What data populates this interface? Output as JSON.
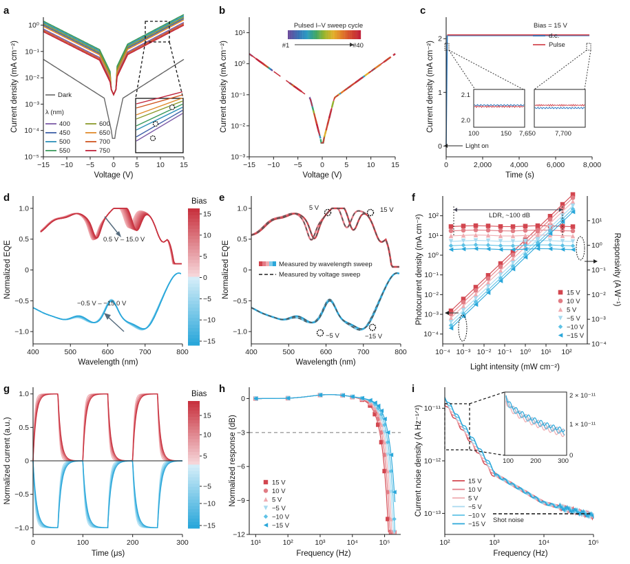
{
  "colors": {
    "red": "#d2464f",
    "blue": "#2aa7da",
    "dark": "#666666",
    "darkRed": "#c8323f",
    "dashGrey": "#555555"
  },
  "chart_data": [
    {
      "panel": "a",
      "type": "line",
      "xlabel": "Voltage (V)",
      "ylabel": "Current density (mA cm⁻²)",
      "xlim": [
        -15,
        15
      ],
      "ylim_log10": [
        -5,
        0.3
      ],
      "xticks": [
        "−15",
        "−10",
        "−5",
        "0",
        "5",
        "10",
        "15"
      ],
      "yticks": [
        "10⁻⁵",
        "10⁻⁴",
        "10⁻³",
        "10⁻²",
        "10⁻¹",
        "10⁰"
      ],
      "dark_label": "Dark",
      "legend_title": "λ (nm)",
      "series": [
        {
          "name": "400",
          "color": "#7b5aa6",
          "peak_log10": 0.1
        },
        {
          "name": "450",
          "color": "#3d5fa8",
          "peak_log10": 0.25
        },
        {
          "name": "500",
          "color": "#2a8fb8",
          "peak_log10": 0.35
        },
        {
          "name": "550",
          "color": "#3a9a5c",
          "peak_log10": 0.4
        },
        {
          "name": "600",
          "color": "#8a9a2a",
          "peak_log10": 0.3
        },
        {
          "name": "650",
          "color": "#e08a2a",
          "peak_log10": 0.2
        },
        {
          "name": "700",
          "color": "#d0551f",
          "peak_log10": 0.05
        },
        {
          "name": "750",
          "color": "#c0223a",
          "peak_log10": 0.0
        },
        {
          "name": "Dark",
          "color": "#666666",
          "peak_log10": -1.4
        }
      ]
    },
    {
      "panel": "b",
      "type": "line",
      "xlabel": "Voltage (V)",
      "ylabel": "Current density (mA cm⁻²)",
      "xlim": [
        -15,
        15
      ],
      "ylim_log10": [
        -3,
        1.5
      ],
      "xticks": [
        "−15",
        "−10",
        "−5",
        "0",
        "5",
        "10",
        "15"
      ],
      "yticks": [
        "10⁻³",
        "10⁻²",
        "10⁻¹",
        "10⁰",
        "10¹"
      ],
      "legend_title": "Pulsed I–V sweep cycle",
      "legend_start": "#1",
      "legend_end": "#40",
      "cycles": 40
    },
    {
      "panel": "c",
      "type": "line",
      "xlabel": "Time (s)",
      "ylabel": "Current density (mA cm⁻²)",
      "xlim": [
        0,
        8000
      ],
      "ylim": [
        -0.2,
        2.4
      ],
      "xticks": [
        "0",
        "2,000",
        "4,000",
        "6,000",
        "8,000"
      ],
      "yticks": [
        "0",
        "1",
        "2"
      ],
      "legend_title": "Bias = 15 V",
      "series": [
        {
          "name": "d.c.",
          "value": 2.06
        },
        {
          "name": "Pulse",
          "value": 2.07
        }
      ],
      "annotation": "Light on",
      "inset1_xticks": [
        "100",
        "150",
        "7,650"
      ],
      "inset2_xticks": [
        "7,700"
      ],
      "inset_yticks": [
        "2.1",
        "2.0"
      ]
    },
    {
      "panel": "d",
      "type": "line",
      "xlabel": "Wavelength (nm)",
      "ylabel": "Normalized EQE",
      "xlim": [
        400,
        800
      ],
      "ylim": [
        -1.2,
        1.2
      ],
      "xticks": [
        "400",
        "500",
        "600",
        "700",
        "800"
      ],
      "yticks": [
        "−1.0",
        "−0.5",
        "0",
        "0.5",
        "1.0"
      ],
      "annotations": [
        "0.5 V – 15.0 V",
        "−0.5 V – −15.0 V"
      ],
      "colorbar_label": "Bias",
      "colorbar_ticks": [
        "15",
        "10",
        "5",
        "0",
        "−5",
        "−10",
        "−15"
      ]
    },
    {
      "panel": "e",
      "type": "line",
      "xlabel": "Wavelength (nm)",
      "ylabel": "Normalized EQE",
      "xlim": [
        400,
        800
      ],
      "ylim": [
        -1.2,
        1.2
      ],
      "xticks": [
        "400",
        "500",
        "600",
        "700",
        "800"
      ],
      "yticks": [
        "−1.0",
        "−0.5",
        "0",
        "0.5",
        "1.0"
      ],
      "legend": [
        "Measured by wavelength sweep",
        "Measured by voltage sweep"
      ],
      "annotations": [
        "5 V",
        "15 V",
        "−5 V",
        "−15 V"
      ]
    },
    {
      "panel": "f",
      "type": "scatter",
      "xlabel": "Light intensity (mW cm⁻²)",
      "ylabel": "Photocurrent density (mA cm⁻²)",
      "y2label": "Responsivity (A W⁻¹)",
      "xlim_log10": [
        -4,
        3
      ],
      "ylim_log10": [
        -4.5,
        3
      ],
      "y2lim_log10": [
        -4,
        2
      ],
      "xticks": [
        "10⁻⁴",
        "10⁻³",
        "10⁻²",
        "10⁻¹",
        "10⁰",
        "10¹",
        "10²"
      ],
      "yticks": [
        "10⁻⁴",
        "10⁻³",
        "10⁻²",
        "10⁻¹",
        "10⁰",
        "10¹",
        "10²"
      ],
      "y2ticks": [
        "10⁻⁴",
        "10⁻³",
        "10⁻²",
        "10⁻¹",
        "10⁰",
        "10¹"
      ],
      "ldr": "LDR, ~100 dB",
      "series": [
        {
          "name": "15 V",
          "color": "#d2464f",
          "resp": 6
        },
        {
          "name": "10 V",
          "color": "#e17c84",
          "resp": 4
        },
        {
          "name": "5 V",
          "color": "#efabb0",
          "resp": 2.5
        },
        {
          "name": "−5 V",
          "color": "#a7d9ef",
          "resp": 1.5
        },
        {
          "name": "−10 V",
          "color": "#5ec2e6",
          "resp": 1.0
        },
        {
          "name": "−15 V",
          "color": "#2aa7da",
          "resp": 0.7
        }
      ]
    },
    {
      "panel": "g",
      "type": "line",
      "xlabel": "Time (μs)",
      "ylabel": "Normalized current (a.u.)",
      "xlim": [
        0,
        300
      ],
      "ylim": [
        -1.1,
        1.1
      ],
      "xticks": [
        "0",
        "100",
        "200",
        "300"
      ],
      "yticks": [
        "−1.0",
        "−0.5",
        "0",
        "0.5",
        "1.0"
      ],
      "colorbar_label": "Bias",
      "colorbar_ticks": [
        "15",
        "10",
        "5",
        "−5",
        "−10",
        "−15"
      ]
    },
    {
      "panel": "h",
      "type": "line",
      "xlabel": "Frequency (Hz)",
      "ylabel": "Normalized response (dB)",
      "xlim_log10": [
        0.8,
        5.5
      ],
      "ylim": [
        -12,
        1
      ],
      "xticks": [
        "10¹",
        "10²",
        "10³",
        "10⁴",
        "10⁵"
      ],
      "yticks": [
        "0",
        "−3",
        "−6",
        "−9",
        "−12"
      ],
      "legend": [
        "15 V",
        "10 V",
        "5 V",
        "−5 V",
        "−10 V",
        "−15 V"
      ],
      "cutoff_db": -3
    },
    {
      "panel": "i",
      "type": "line",
      "xlabel": "Frequency (Hz)",
      "ylabel": "Current noise density (A Hz⁻¹ᐟ²)",
      "xlim_log10": [
        2,
        5
      ],
      "ylim_log10": [
        -13.4,
        -10.6
      ],
      "xticks": [
        "10²",
        "10³",
        "10⁴",
        "10⁵"
      ],
      "yticks": [
        "10⁻¹¹",
        "10⁻¹²",
        "10⁻¹³"
      ],
      "shot_noise_label": "Shot noise",
      "shot_noise": 8e-14,
      "legend": [
        "15 V",
        "10 V",
        "5 V",
        "−5 V",
        "−10 V",
        "−15 V"
      ],
      "inset_xticks": [
        "100",
        "200",
        "300"
      ],
      "inset_yticks": [
        "2 × 10⁻¹¹",
        "1 × 10⁻¹¹",
        "0"
      ]
    }
  ],
  "panel_labels": [
    "a",
    "b",
    "c",
    "d",
    "e",
    "f",
    "g",
    "h",
    "i"
  ]
}
